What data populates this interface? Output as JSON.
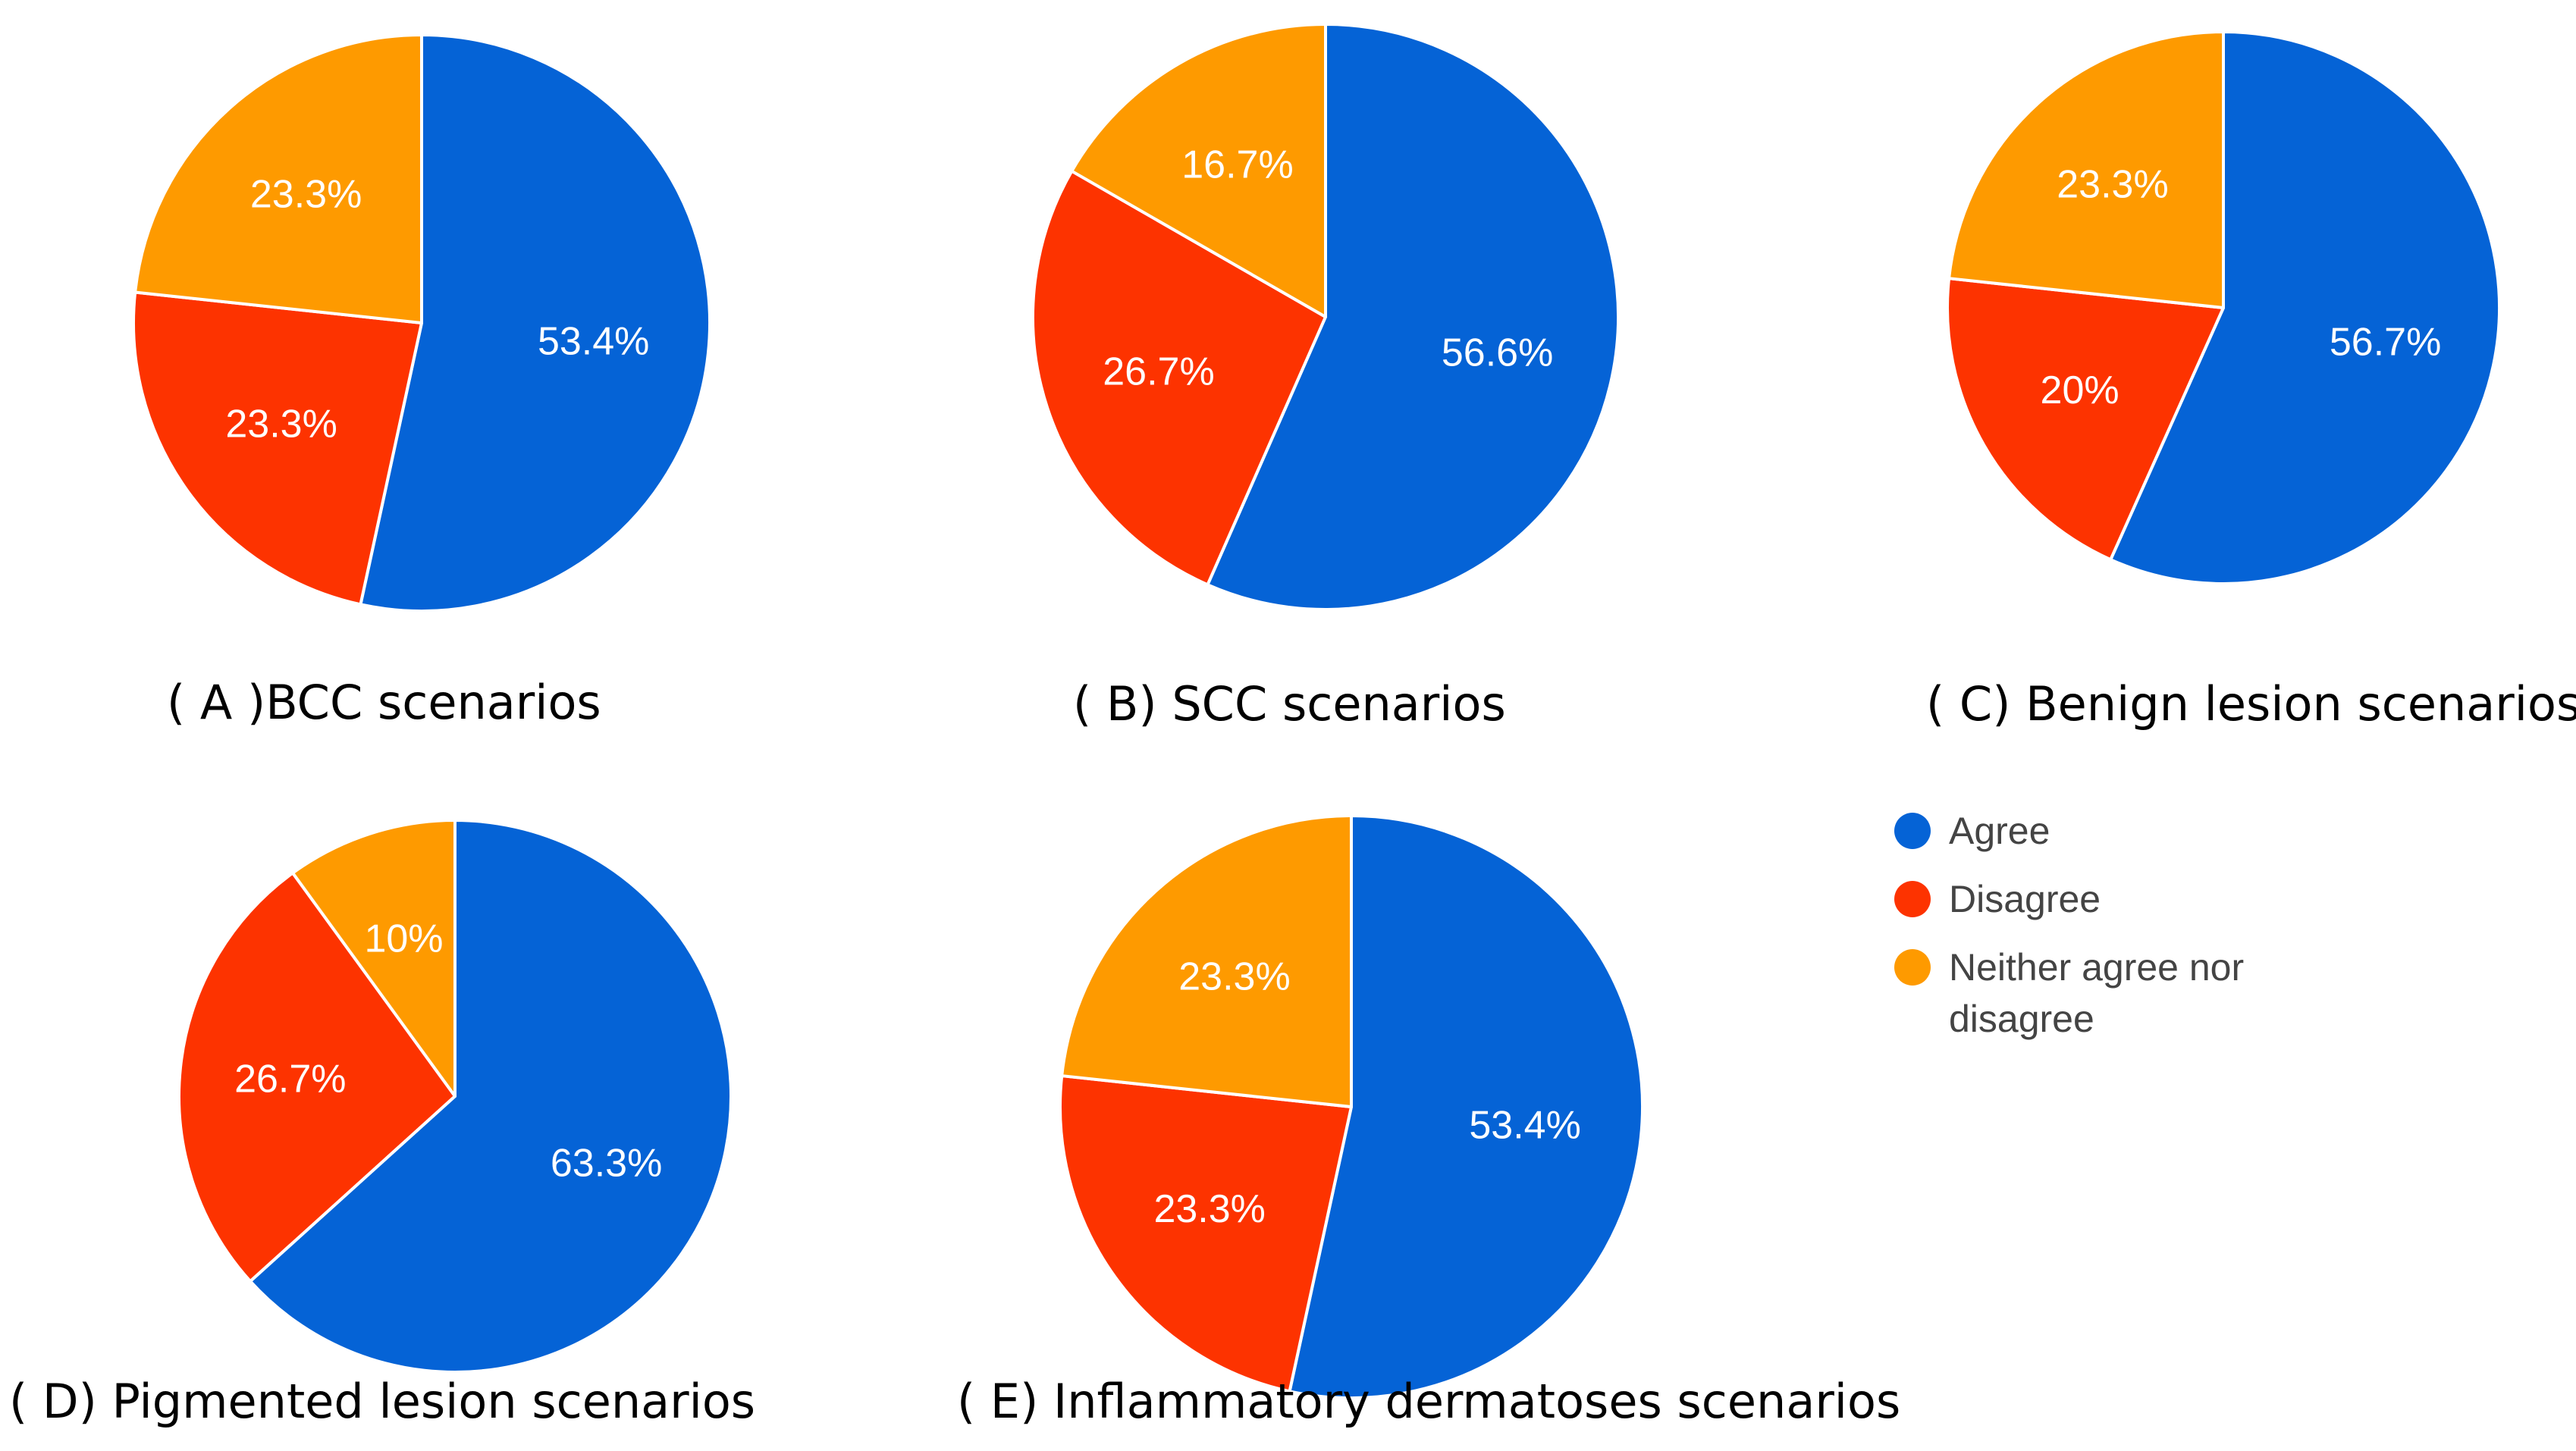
{
  "chart_data": [
    {
      "type": "pie",
      "caption": "( A )BCC scenarios",
      "slices": [
        {
          "label": "Agree",
          "value": 53.4,
          "text": "53.4%"
        },
        {
          "label": "Disagree",
          "value": 23.3,
          "text": "23.3%"
        },
        {
          "label": "Neither agree nor disagree",
          "value": 23.3,
          "text": "23.3%"
        }
      ]
    },
    {
      "type": "pie",
      "caption": "( B) SCC scenarios",
      "slices": [
        {
          "label": "Agree",
          "value": 56.6,
          "text": "56.6%"
        },
        {
          "label": "Disagree",
          "value": 26.7,
          "text": "26.7%"
        },
        {
          "label": "Neither agree nor disagree",
          "value": 16.7,
          "text": "16.7%"
        }
      ]
    },
    {
      "type": "pie",
      "caption": "( C) Benign lesion scenarios",
      "slices": [
        {
          "label": "Agree",
          "value": 56.7,
          "text": "56.7%"
        },
        {
          "label": "Disagree",
          "value": 20,
          "text": "20%"
        },
        {
          "label": "Neither agree nor disagree",
          "value": 23.3,
          "text": "23.3%"
        }
      ]
    },
    {
      "type": "pie",
      "caption": "( D) Pigmented lesion scenarios",
      "slices": [
        {
          "label": "Agree",
          "value": 63.3,
          "text": "63.3%"
        },
        {
          "label": "Disagree",
          "value": 26.7,
          "text": "26.7%"
        },
        {
          "label": "Neither agree nor disagree",
          "value": 10,
          "text": "10%"
        }
      ]
    },
    {
      "type": "pie",
      "caption": "( E) Inflammatory dermatoses scenarios",
      "slices": [
        {
          "label": "Agree",
          "value": 53.4,
          "text": "53.4%"
        },
        {
          "label": "Disagree",
          "value": 23.3,
          "text": "23.3%"
        },
        {
          "label": "Neither agree nor disagree",
          "value": 23.3,
          "text": "23.3%"
        }
      ]
    }
  ],
  "legend": [
    {
      "label": "Agree",
      "lines": [
        "Agree"
      ],
      "color": "#0563d6"
    },
    {
      "label": "Disagree",
      "lines": [
        "Disagree"
      ],
      "color": "#fd3300"
    },
    {
      "label": "Neither agree nor disagree",
      "lines": [
        "Neither agree nor",
        "disagree"
      ],
      "color": "#fe9a00"
    }
  ]
}
